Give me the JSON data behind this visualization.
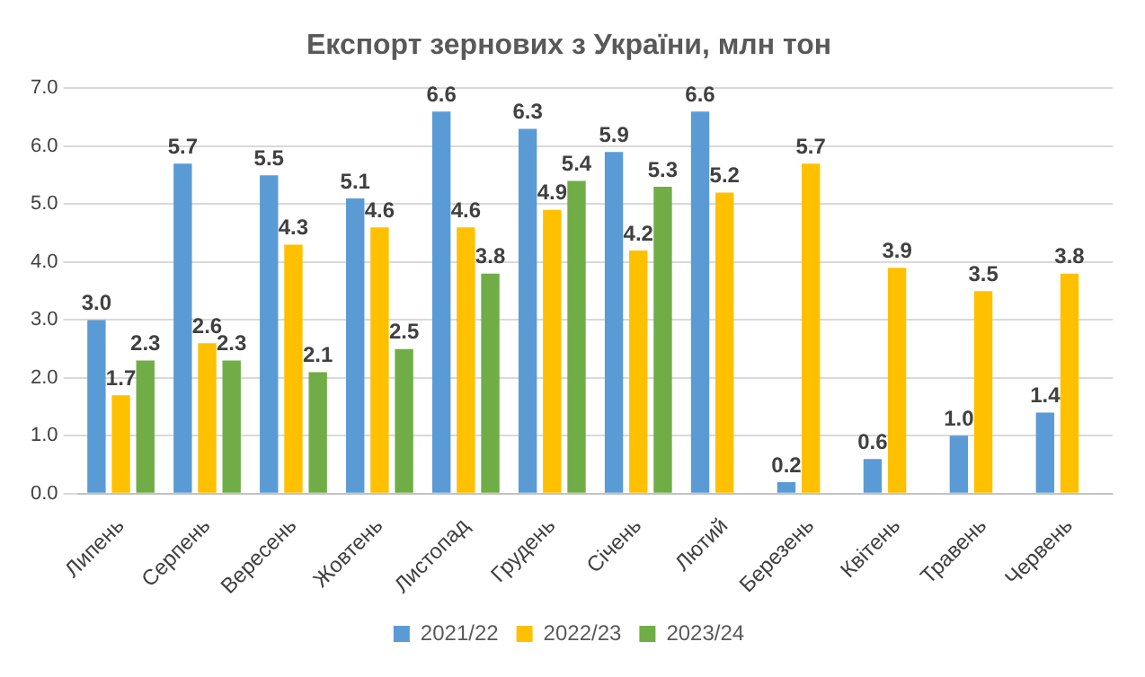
{
  "chart_data": {
    "type": "bar",
    "title": "Експорт зернових з України, млн тон",
    "categories": [
      "Липень",
      "Серпень",
      "Вересень",
      "Жовтень",
      "Листопад",
      "Грудень",
      "Січень",
      "Лютий",
      "Березень",
      "Квітень",
      "Травень",
      "Червень"
    ],
    "series": [
      {
        "name": "2021/22",
        "color": "#5b9bd5",
        "values": [
          3.0,
          5.7,
          5.5,
          5.1,
          6.6,
          6.3,
          5.9,
          6.6,
          0.2,
          0.6,
          1.0,
          1.4
        ],
        "value_labels": [
          "3.0",
          "5.7",
          "5.5",
          "5.1",
          "6.6",
          "6.3",
          "5.9",
          "6.6",
          "0.2",
          "0.6",
          "1.0",
          "1.4"
        ]
      },
      {
        "name": "2022/23",
        "color": "#ffc000",
        "values": [
          1.7,
          2.6,
          4.3,
          4.6,
          4.6,
          4.9,
          4.2,
          5.2,
          5.7,
          3.9,
          3.5,
          3.8
        ],
        "value_labels": [
          "1.7",
          "2.6",
          "4.3",
          "4.6",
          "4.6",
          "4.9",
          "4.2",
          "5.2",
          "5.7",
          "3.9",
          "3.5",
          "3.8"
        ]
      },
      {
        "name": "2023/24",
        "color": "#70ad47",
        "values": [
          2.3,
          2.3,
          2.1,
          2.5,
          3.8,
          5.4,
          5.3,
          null,
          null,
          null,
          null,
          null
        ],
        "value_labels": [
          "2.3",
          "2.3",
          "2.1",
          "2.5",
          "3.8",
          "5.4",
          "5.3",
          null,
          null,
          null,
          null,
          null
        ]
      }
    ],
    "ylim": [
      0,
      7
    ],
    "yticks": [
      {
        "value": 0,
        "label": "0.0"
      },
      {
        "value": 1,
        "label": "1.0"
      },
      {
        "value": 2,
        "label": "2.0"
      },
      {
        "value": 3,
        "label": "3.0"
      },
      {
        "value": 4,
        "label": "4.0"
      },
      {
        "value": 5,
        "label": "5.0"
      },
      {
        "value": 6,
        "label": "6.0"
      },
      {
        "value": 7,
        "label": "7.0"
      }
    ],
    "grid": "y",
    "legend": "bottom"
  }
}
